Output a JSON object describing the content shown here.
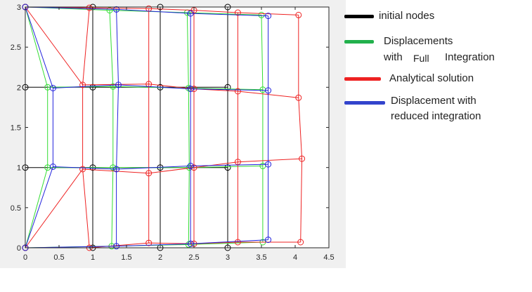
{
  "chart_data": {
    "type": "line",
    "xlim": [
      0,
      4.5
    ],
    "ylim": [
      0,
      3
    ],
    "x_ticks": [
      0,
      0.5,
      1,
      1.5,
      2,
      2.5,
      3,
      3.5,
      4,
      4.5
    ],
    "y_ticks": [
      0,
      0.5,
      1,
      1.5,
      2,
      2.5,
      3
    ],
    "x_tick_labels": [
      "0",
      "0.5",
      "1",
      "1.5",
      "2",
      "2.5",
      "3",
      "3.5",
      "4",
      "4.5"
    ],
    "y_tick_labels": [
      "0",
      "0.5",
      "1",
      "1.5",
      "2",
      "2.5",
      "3"
    ],
    "grid": false,
    "legend_placement": "outside-right",
    "series": [
      {
        "key": "initial",
        "color": "#000000",
        "grid": [
          [
            [
              0,
              0
            ],
            [
              1,
              0
            ],
            [
              2,
              0
            ],
            [
              3,
              0
            ]
          ],
          [
            [
              0,
              1
            ],
            [
              1,
              1
            ],
            [
              2,
              1
            ],
            [
              3,
              1
            ]
          ],
          [
            [
              0,
              2
            ],
            [
              1,
              2
            ],
            [
              2,
              2
            ],
            [
              3,
              2
            ]
          ],
          [
            [
              0,
              3
            ],
            [
              1,
              3
            ],
            [
              2,
              3
            ],
            [
              3,
              3
            ]
          ]
        ]
      },
      {
        "key": "full",
        "color": "#33dd33",
        "grid": [
          [
            [
              0,
              0
            ],
            [
              1.28,
              0.02
            ],
            [
              2.42,
              0.04
            ],
            [
              3.52,
              0.07
            ]
          ],
          [
            [
              0.33,
              1.0
            ],
            [
              1.3,
              1.0
            ],
            [
              2.43,
              1.0
            ],
            [
              3.52,
              1.02
            ]
          ],
          [
            [
              0.33,
              2.0
            ],
            [
              1.3,
              2.01
            ],
            [
              2.42,
              1.99
            ],
            [
              3.52,
              1.97
            ]
          ],
          [
            [
              0,
              3
            ],
            [
              1.25,
              2.96
            ],
            [
              2.4,
              2.93
            ],
            [
              3.5,
              2.9
            ]
          ]
        ]
      },
      {
        "key": "analytical",
        "color": "#ee2222",
        "grid": [
          [
            [
              0,
              0
            ],
            [
              0.95,
              0.0
            ],
            [
              1.83,
              0.06
            ],
            [
              2.5,
              0.05
            ],
            [
              3.15,
              0.07
            ],
            [
              4.08,
              0.07
            ]
          ],
          [
            [
              0,
              0
            ],
            [
              0.85,
              0.98
            ],
            [
              1.83,
              0.93
            ],
            [
              2.5,
              1.0
            ],
            [
              3.15,
              1.07
            ],
            [
              4.1,
              1.11
            ]
          ],
          [
            [
              0,
              3
            ],
            [
              0.85,
              2.03
            ],
            [
              1.83,
              2.04
            ],
            [
              2.5,
              1.98
            ],
            [
              3.15,
              1.95
            ],
            [
              4.05,
              1.87
            ]
          ],
          [
            [
              0,
              3
            ],
            [
              0.95,
              2.99
            ],
            [
              1.83,
              2.98
            ],
            [
              2.5,
              2.96
            ],
            [
              3.15,
              2.93
            ],
            [
              4.05,
              2.9
            ]
          ]
        ]
      },
      {
        "key": "reduced",
        "color": "#2222dd",
        "grid": [
          [
            [
              0,
              0
            ],
            [
              1.35,
              0.02
            ],
            [
              2.45,
              0.05
            ],
            [
              3.6,
              0.1
            ]
          ],
          [
            [
              0.41,
              1.01
            ],
            [
              1.35,
              0.98
            ],
            [
              2.45,
              1.02
            ],
            [
              3.6,
              1.04
            ]
          ],
          [
            [
              0.41,
              1.99
            ],
            [
              1.38,
              2.03
            ],
            [
              2.45,
              1.98
            ],
            [
              3.6,
              1.96
            ]
          ],
          [
            [
              0,
              3
            ],
            [
              1.35,
              2.97
            ],
            [
              2.45,
              2.92
            ],
            [
              3.6,
              2.89
            ]
          ]
        ]
      }
    ]
  },
  "legend": {
    "items": [
      {
        "color": "#000000",
        "line1": "initial nodes",
        "line2": ""
      },
      {
        "color": "#22b14c",
        "line1": "Displacements",
        "line2a": "with",
        "line2b": "Full",
        "line2c": "Integration"
      },
      {
        "color": "#ee2222",
        "line1": "Analytical solution",
        "line2": ""
      },
      {
        "color": "#2233cc",
        "line1": "Displacement with",
        "line2": "reduced integration"
      }
    ]
  }
}
